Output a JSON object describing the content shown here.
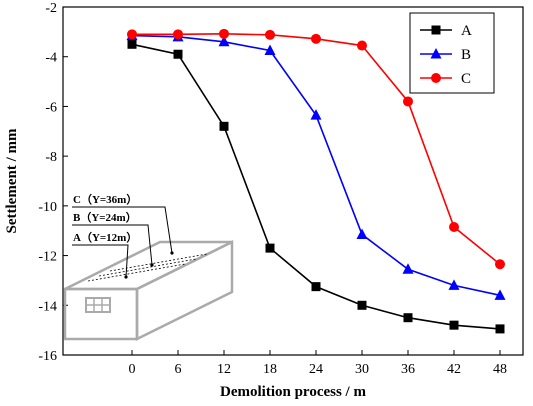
{
  "chart_data": {
    "type": "line",
    "xlabel": "Demolition process / m",
    "ylabel": "Settlement / mm",
    "x": [
      0,
      6,
      12,
      18,
      24,
      30,
      36,
      42,
      48
    ],
    "xticks": [
      "0",
      "6",
      "12",
      "18",
      "24",
      "30",
      "36",
      "42",
      "48"
    ],
    "xlim": [
      -9,
      51
    ],
    "ylim": [
      -16,
      -2
    ],
    "yticks": [
      "-2",
      "-4",
      "-6",
      "-8",
      "-10",
      "-12",
      "-14",
      "-16"
    ],
    "grid": false,
    "legend_position": "top-right",
    "series": [
      {
        "name": "A",
        "color": "#000000",
        "marker": "square",
        "values": [
          -3.5,
          -3.9,
          -6.8,
          -11.7,
          -13.25,
          -14.0,
          -14.5,
          -14.8,
          -14.95
        ]
      },
      {
        "name": "B",
        "color": "#0000ff",
        "marker": "triangle",
        "values": [
          -3.15,
          -3.2,
          -3.4,
          -3.75,
          -6.35,
          -11.15,
          -12.55,
          -13.2,
          -13.6
        ]
      },
      {
        "name": "C",
        "color": "#ff0000",
        "marker": "circle",
        "values": [
          -3.1,
          -3.1,
          -3.08,
          -3.12,
          -3.28,
          -3.55,
          -5.8,
          -10.85,
          -12.35
        ]
      }
    ],
    "inset": {
      "description_labels": [
        "C（Y=36m）",
        "B（Y=24m）",
        "A（Y=12m）"
      ]
    }
  }
}
